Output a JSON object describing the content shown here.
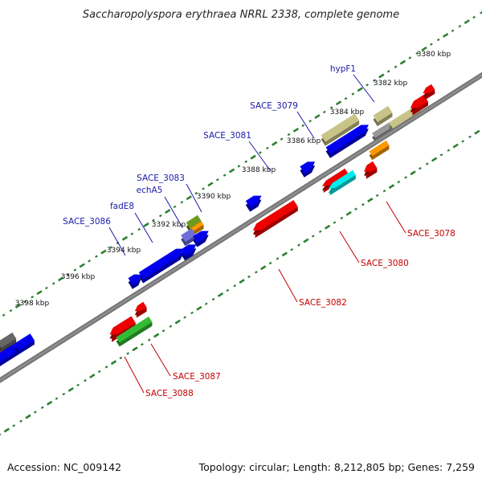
{
  "title": "Saccharopolyspora erythraea NRRL 2338, complete genome",
  "accession": "Accession: NC_009142",
  "summary": "Topology: circular; Length: 8,212,805 bp; Genes: 7,259",
  "colors": {
    "background": "#ffffff",
    "backbone": "#8c8c8c",
    "ticks": "#2e7d32",
    "label_forward": "#1a1aa6",
    "label_reverse": "#c40000",
    "cds_forward": "#0000ee",
    "cds_reverse": "#ee0000"
  },
  "scale_labels": [
    "3380 kbp",
    "3382 kbp",
    "3384 kbp",
    "3386 kbp",
    "3388 kbp",
    "3390 kbp",
    "3392 kbp",
    "3394 kbp",
    "3396 kbp",
    "3398 kbp"
  ],
  "gene_labels": {
    "forward": [
      "hypF1",
      "SACE_3079",
      "SACE_3081",
      "SACE_3083",
      "echA5",
      "fadE8",
      "SACE_3086"
    ],
    "reverse": [
      "SACE_3078",
      "SACE_3080",
      "SACE_3082",
      "SACE_3087",
      "SACE_3088"
    ]
  }
}
